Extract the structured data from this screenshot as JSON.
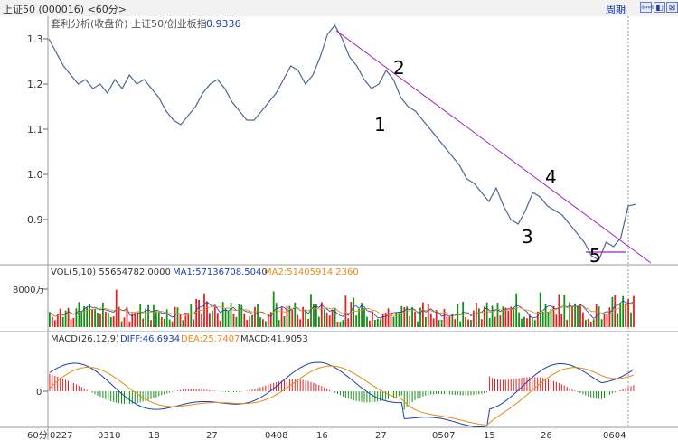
{
  "window": {
    "title": "上证50 (000016) <60分>",
    "period_label": "周期",
    "nav_buttons": [
      "⇦⇨",
      "◧",
      "⊠"
    ]
  },
  "price_panel": {
    "legend_title": "套利分析(收盘价) 上证50/创业板指",
    "legend_value": "0.9336",
    "y_ticks": [
      "1.3",
      "1.2",
      "1.1",
      "1.0",
      "0.9"
    ],
    "annotations": [
      "1",
      "2",
      "3",
      "4",
      "5"
    ]
  },
  "volume_panel": {
    "legend": "VOL(5,10) 55654782.0000",
    "ma1": "MA1:57136708.5040",
    "ma2": "MA2:51405914.2360",
    "y_tick": "8000万"
  },
  "macd_panel": {
    "legend": "MACD(26,12,9)",
    "diff": "DIFF:46.6934",
    "dea": "DEA:25.7407",
    "macd": "MACD:41.9053",
    "y_tick": "0"
  },
  "x_axis": {
    "unit": "60分",
    "labels": [
      "0227",
      "0310",
      "18",
      "27",
      "0408",
      "16",
      "27",
      "0507",
      "15",
      "26",
      "0604"
    ]
  },
  "colors": {
    "price_line": "#4a6894",
    "trend_line": "#a020c0",
    "vol_up": "#e02020",
    "vol_down": "#109010",
    "diff_line": "#1a3fb0",
    "dea_line": "#e88a14",
    "legend_blue": "#1a3fb0",
    "legend_orange": "#e88a14"
  },
  "chart_data": {
    "type": "line",
    "x_unit": "60-minute bars",
    "x_tick_labels": [
      "0227",
      "0310",
      "18",
      "27",
      "0408",
      "16",
      "27",
      "0507",
      "15",
      "26",
      "0604"
    ],
    "series": [
      {
        "name": "套利分析(收盘价) 上证50/创业板指",
        "values": [
          1.3,
          1.27,
          1.24,
          1.22,
          1.2,
          1.21,
          1.19,
          1.2,
          1.18,
          1.21,
          1.19,
          1.22,
          1.2,
          1.21,
          1.19,
          1.17,
          1.14,
          1.12,
          1.11,
          1.13,
          1.15,
          1.18,
          1.2,
          1.21,
          1.19,
          1.16,
          1.14,
          1.12,
          1.12,
          1.14,
          1.16,
          1.18,
          1.21,
          1.24,
          1.23,
          1.2,
          1.22,
          1.26,
          1.31,
          1.33,
          1.3,
          1.26,
          1.24,
          1.21,
          1.19,
          1.2,
          1.23,
          1.21,
          1.17,
          1.15,
          1.14,
          1.12,
          1.1,
          1.08,
          1.06,
          1.04,
          1.02,
          0.99,
          0.98,
          0.96,
          0.94,
          0.97,
          0.93,
          0.9,
          0.89,
          0.92,
          0.96,
          0.95,
          0.93,
          0.92,
          0.91,
          0.89,
          0.87,
          0.85,
          0.82,
          0.81,
          0.85,
          0.84,
          0.86,
          0.93,
          0.9336
        ]
      }
    ],
    "ylim": [
      0.8,
      1.34
    ],
    "annotations": [
      "1",
      "2",
      "3",
      "4",
      "5"
    ]
  }
}
